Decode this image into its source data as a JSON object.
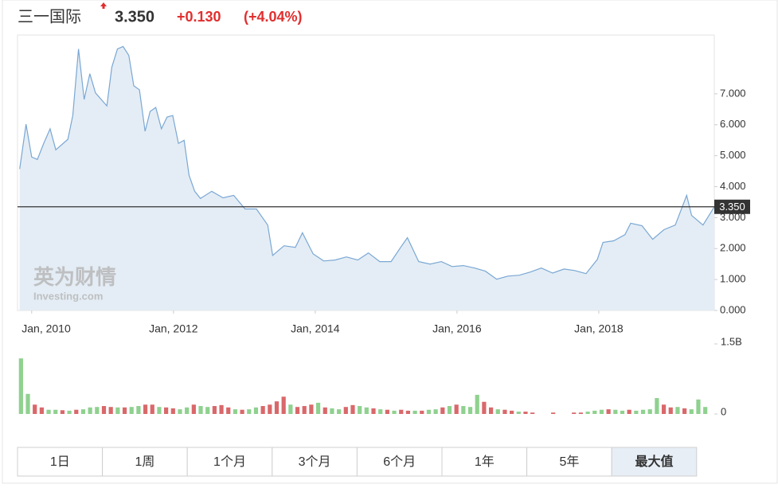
{
  "header": {
    "name": "三一国际",
    "price": "3.350",
    "change": "+0.130",
    "change_pct": "(+4.04%)"
  },
  "watermark": {
    "brand": "英为财情",
    "site": "Investing.com"
  },
  "chart_data": [
    {
      "type": "area",
      "color": "#7aa7d4",
      "fill": "#e4edf5",
      "x": [
        2009.83,
        2009.92,
        2010.0,
        2010.08,
        2010.17,
        2010.26,
        2010.34,
        2010.51,
        2010.58,
        2010.66,
        2010.74,
        2010.82,
        2010.9,
        2011.06,
        2011.13,
        2011.21,
        2011.29,
        2011.37,
        2011.44,
        2011.52,
        2011.6,
        2011.67,
        2011.75,
        2011.83,
        2011.91,
        2011.99,
        2012.07,
        2012.15,
        2012.22,
        2012.3,
        2012.38,
        2012.54,
        2012.7,
        2012.85,
        2013.01,
        2013.17,
        2013.33,
        2013.4,
        2013.56,
        2013.72,
        2013.82,
        2013.97,
        2014.12,
        2014.28,
        2014.44,
        2014.6,
        2014.75,
        2014.91,
        2015.07,
        2015.22,
        2015.3,
        2015.46,
        2015.62,
        2015.78,
        2015.93,
        2016.09,
        2016.25,
        2016.4,
        2016.56,
        2016.72,
        2016.88,
        2017.03,
        2017.19,
        2017.35,
        2017.51,
        2017.66,
        2017.82,
        2017.98,
        2018.06,
        2018.21,
        2018.37,
        2018.45,
        2018.61,
        2018.76,
        2018.92,
        2019.08,
        2019.24,
        2019.31,
        2019.47,
        2019.63
      ],
      "values": [
        4.57,
        6.02,
        4.96,
        4.88,
        5.4,
        5.87,
        5.19,
        5.53,
        6.3,
        8.45,
        6.82,
        7.65,
        7.03,
        6.61,
        7.86,
        8.45,
        8.53,
        8.24,
        7.26,
        7.13,
        5.79,
        6.43,
        6.56,
        5.87,
        6.25,
        6.3,
        5.4,
        5.5,
        4.37,
        3.85,
        3.62,
        3.85,
        3.64,
        3.72,
        3.28,
        3.28,
        2.76,
        1.78,
        2.09,
        2.04,
        2.51,
        1.83,
        1.6,
        1.63,
        1.73,
        1.63,
        1.86,
        1.58,
        1.58,
        2.09,
        2.35,
        1.58,
        1.5,
        1.58,
        1.42,
        1.45,
        1.37,
        1.27,
        1.01,
        1.11,
        1.14,
        1.24,
        1.37,
        1.21,
        1.34,
        1.29,
        1.19,
        1.65,
        2.2,
        2.25,
        2.45,
        2.82,
        2.74,
        2.3,
        2.61,
        2.76,
        3.72,
        3.07,
        2.76,
        3.35
      ],
      "xlim": [
        2009.8,
        2019.63
      ],
      "xticks": [
        {
          "value": 2010,
          "label": "Jan, 2010"
        },
        {
          "value": 2012,
          "label": "Jan, 2012"
        },
        {
          "value": 2014,
          "label": "Jan, 2014"
        },
        {
          "value": 2016,
          "label": "Jan, 2016"
        },
        {
          "value": 2018,
          "label": "Jan, 2018"
        }
      ],
      "ylim": [
        0,
        8.9
      ],
      "yticks": [
        {
          "value": 0,
          "label": "0.000"
        },
        {
          "value": 1,
          "label": "1.000"
        },
        {
          "value": 2,
          "label": "2.000"
        },
        {
          "value": 3,
          "label": "3.000"
        },
        {
          "value": 4,
          "label": "4.000"
        },
        {
          "value": 5,
          "label": "5.000"
        },
        {
          "value": 6,
          "label": "6.000"
        },
        {
          "value": 7,
          "label": "7.000"
        }
      ],
      "last_price": {
        "value": 3.35,
        "label": "3.350"
      }
    },
    {
      "type": "volume",
      "up_color": "#8fd18f",
      "down_color": "#d9686a",
      "values": [
        1.19,
        0.43,
        0.2,
        0.14,
        0.09,
        0.09,
        0.08,
        0.07,
        0.09,
        0.1,
        0.14,
        0.15,
        0.17,
        0.15,
        0.14,
        0.14,
        0.15,
        0.17,
        0.2,
        0.2,
        0.15,
        0.14,
        0.12,
        0.1,
        0.14,
        0.2,
        0.17,
        0.15,
        0.17,
        0.19,
        0.14,
        0.1,
        0.09,
        0.1,
        0.14,
        0.17,
        0.2,
        0.27,
        0.37,
        0.2,
        0.15,
        0.17,
        0.2,
        0.24,
        0.14,
        0.12,
        0.1,
        0.15,
        0.19,
        0.17,
        0.14,
        0.12,
        0.1,
        0.09,
        0.07,
        0.09,
        0.07,
        0.07,
        0.07,
        0.09,
        0.1,
        0.14,
        0.17,
        0.2,
        0.17,
        0.15,
        0.41,
        0.26,
        0.14,
        0.1,
        0.09,
        0.07,
        0.05,
        0.05,
        0.03,
        0,
        0,
        0.03,
        0,
        0,
        0.03,
        0.03,
        0.05,
        0.07,
        0.09,
        0.1,
        0.09,
        0.07,
        0.09,
        0.07,
        0.09,
        0.1,
        0.34,
        0.2,
        0.14,
        0.15,
        0.12,
        0.1,
        0.31,
        0.15
      ],
      "up": [
        true,
        true,
        false,
        false,
        true,
        true,
        false,
        true,
        false,
        true,
        true,
        true,
        false,
        false,
        true,
        false,
        true,
        true,
        false,
        false,
        true,
        false,
        false,
        true,
        true,
        false,
        true,
        true,
        false,
        false,
        false,
        true,
        false,
        true,
        true,
        false,
        false,
        false,
        false,
        true,
        false,
        false,
        false,
        true,
        false,
        true,
        true,
        false,
        false,
        true,
        true,
        false,
        true,
        false,
        true,
        false,
        false,
        true,
        false,
        true,
        true,
        false,
        true,
        false,
        true,
        true,
        true,
        false,
        false,
        true,
        false,
        false,
        true,
        false,
        false,
        false,
        false,
        false,
        false,
        false,
        false,
        false,
        true,
        true,
        true,
        false,
        true,
        true,
        false,
        true,
        true,
        true,
        true,
        false,
        false,
        true,
        false,
        true,
        true,
        true
      ],
      "ylim": [
        0,
        1.5
      ],
      "yticks": [
        {
          "value": 0,
          "label": "0"
        },
        {
          "value": 1.5,
          "label": "1.5B"
        }
      ]
    }
  ],
  "buttons": [
    "1日",
    "1周",
    "1个月",
    "3个月",
    "6个月",
    "1年",
    "5年",
    "最大值"
  ],
  "active_button": 7
}
